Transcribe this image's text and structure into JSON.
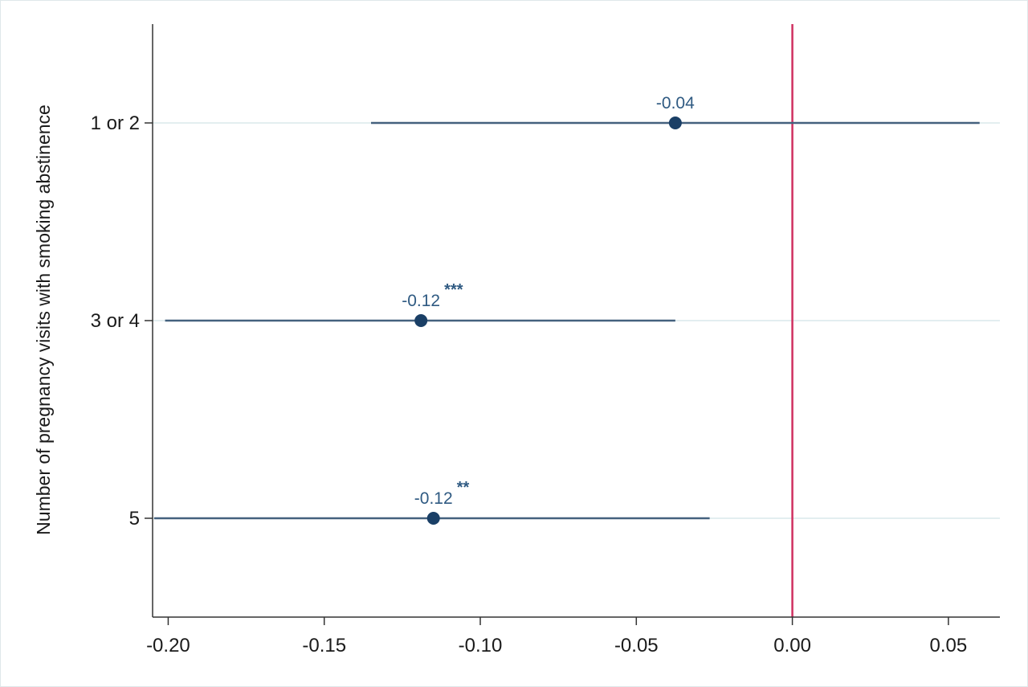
{
  "chart_data": {
    "type": "scatter",
    "title": "",
    "xlabel": "",
    "ylabel": "Number of pregnancy visits with smoking abstinence",
    "xlim": [
      -0.205,
      0.0665
    ],
    "x_ticks": [
      -0.2,
      -0.15,
      -0.1,
      -0.05,
      0.0,
      0.05
    ],
    "x_tick_labels": [
      "-0.20",
      "-0.15",
      "-0.10",
      "-0.05",
      "0.00",
      "0.05"
    ],
    "reference_line_x": 0.0,
    "grid": "horizontal",
    "categories": [
      "1 or 2",
      "3 or 4",
      "5"
    ],
    "points": [
      {
        "category": "1 or 2",
        "estimate": -0.0375,
        "ci_low": -0.135,
        "ci_high": 0.06,
        "label": "-0.04",
        "significance": ""
      },
      {
        "category": "3 or 4",
        "estimate": -0.119,
        "ci_low": -0.201,
        "ci_high": -0.0375,
        "label": "-0.12",
        "significance": "***"
      },
      {
        "category": "5",
        "estimate": -0.115,
        "ci_low": -0.2045,
        "ci_high": -0.0265,
        "label": "-0.12",
        "significance": "**"
      }
    ],
    "colors": {
      "point": "#1a3f66",
      "ci_line": "#44617e",
      "label": "#2f5a82",
      "reference_line": "#d03060",
      "gridline": "#e3eef0",
      "axis": "#333333"
    }
  }
}
